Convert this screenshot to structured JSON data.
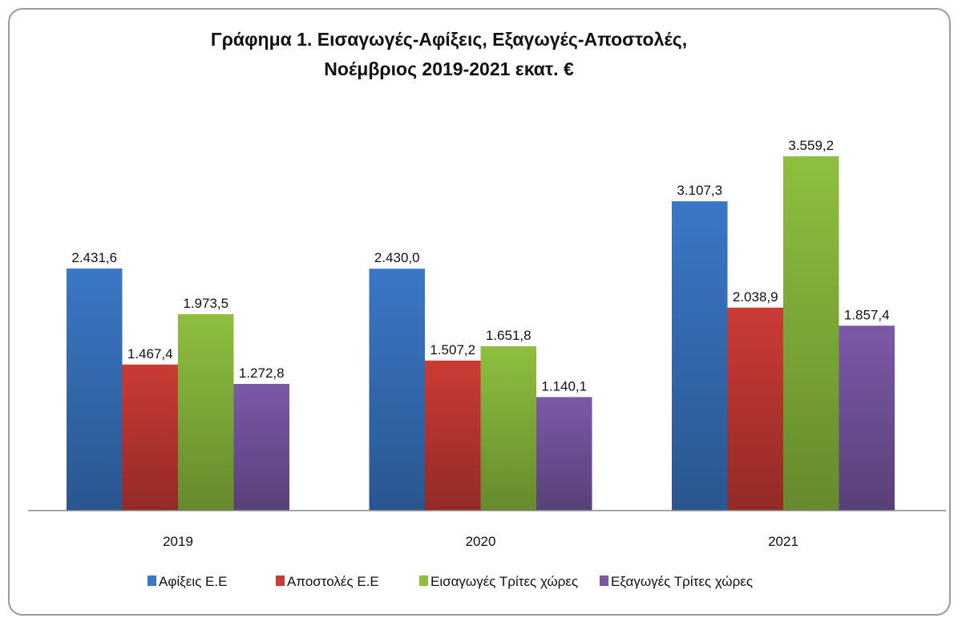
{
  "chart_data": {
    "type": "bar",
    "title": "Γράφημα 1. Εισαγωγές-Αφίξεις, Εξαγωγές-Αποστολές,",
    "subtitle": "Νοέμβριος 2019-2021 εκατ. €",
    "xlabel": "",
    "ylabel": "",
    "ylim": [
      0,
      4000
    ],
    "grid": false,
    "legend": "bottom",
    "categories": [
      "2019",
      "2020",
      "2021"
    ],
    "series": [
      {
        "name": "Αφίξεις Ε.Ε",
        "color": "#3b77c6",
        "values": [
          2431.6,
          2430.0,
          3107.3
        ],
        "labels": [
          "2.431,6",
          "2.430,0",
          "3.107,3"
        ]
      },
      {
        "name": "Αποστολές  Ε.Ε",
        "color": "#cc3b35",
        "values": [
          1467.4,
          1507.2,
          2038.9
        ],
        "labels": [
          "1.467,4",
          "1.507,2",
          "2.038,9"
        ]
      },
      {
        "name": "Εισαγωγές Τρίτες χώρες",
        "color": "#8ebf3f",
        "values": [
          1973.5,
          1651.8,
          3559.2
        ],
        "labels": [
          "1.973,5",
          "1.651,8",
          "3.559,2"
        ]
      },
      {
        "name": "Εξαγωγές Τρίτες χώρες",
        "color": "#7b59a8",
        "values": [
          1272.8,
          1140.1,
          1857.4
        ],
        "labels": [
          "1.272,8",
          "1.140,1",
          "1.857,4"
        ]
      }
    ]
  }
}
